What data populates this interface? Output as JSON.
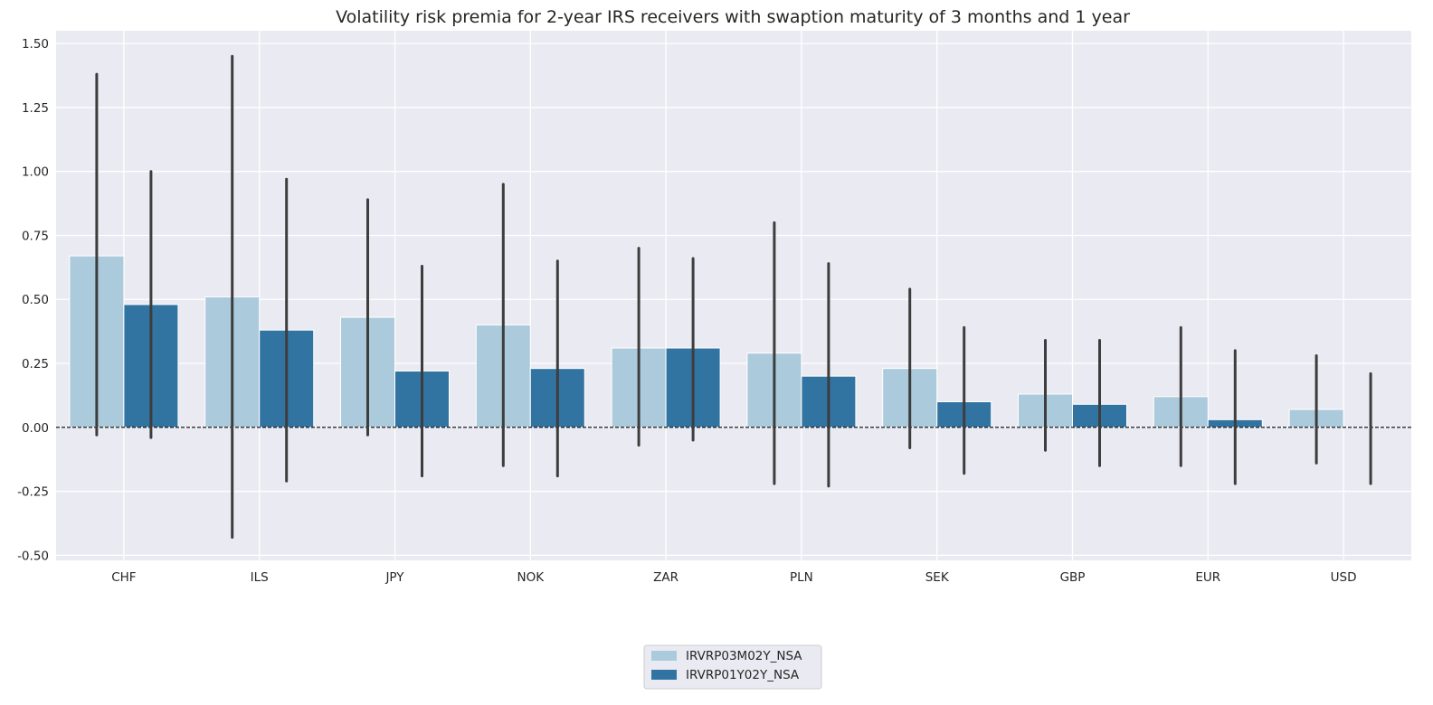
{
  "chart_data": {
    "type": "bar",
    "title": "Volatility risk premia for 2-year IRS receivers with swaption maturity of 3 months and 1 year",
    "xlabel": "",
    "ylabel": "",
    "categories": [
      "CHF",
      "ILS",
      "JPY",
      "NOK",
      "ZAR",
      "PLN",
      "SEK",
      "GBP",
      "EUR",
      "USD"
    ],
    "ylim": [
      -0.52,
      1.55
    ],
    "yticks": [
      "1.50",
      "1.25",
      "1.00",
      "0.75",
      "0.50",
      "0.25",
      "0.00",
      "-0.25",
      "-0.50"
    ],
    "ytick_values": [
      1.5,
      1.25,
      1.0,
      0.75,
      0.5,
      0.25,
      0.0,
      -0.25,
      -0.5
    ],
    "reference_line": 0.0,
    "grid": true,
    "legend_position": "bottom-center",
    "series": [
      {
        "name": "IRVRP03M02Y_NSA",
        "color": "#abcadb",
        "values": [
          0.67,
          0.51,
          0.43,
          0.4,
          0.31,
          0.29,
          0.23,
          0.13,
          0.12,
          0.07
        ],
        "error_low": [
          -0.03,
          -0.43,
          -0.03,
          -0.15,
          -0.07,
          -0.22,
          -0.08,
          -0.09,
          -0.15,
          -0.14
        ],
        "error_high": [
          1.38,
          1.45,
          0.89,
          0.95,
          0.7,
          0.8,
          0.54,
          0.34,
          0.39,
          0.28
        ]
      },
      {
        "name": "IRVRP01Y02Y_NSA",
        "color": "#3274a1",
        "values": [
          0.48,
          0.38,
          0.22,
          0.23,
          0.31,
          0.2,
          0.1,
          0.09,
          0.03,
          0.0
        ],
        "error_low": [
          -0.04,
          -0.21,
          -0.19,
          -0.19,
          -0.05,
          -0.23,
          -0.18,
          -0.15,
          -0.22,
          -0.22
        ],
        "error_high": [
          1.0,
          0.97,
          0.63,
          0.65,
          0.66,
          0.64,
          0.39,
          0.34,
          0.3,
          0.21
        ]
      }
    ]
  },
  "colors": {
    "plot_background": "#eaeaf2",
    "grid": "#ffffff",
    "error_bar": "#3d3d3d",
    "zero_line": "#000000",
    "text": "#262626"
  }
}
